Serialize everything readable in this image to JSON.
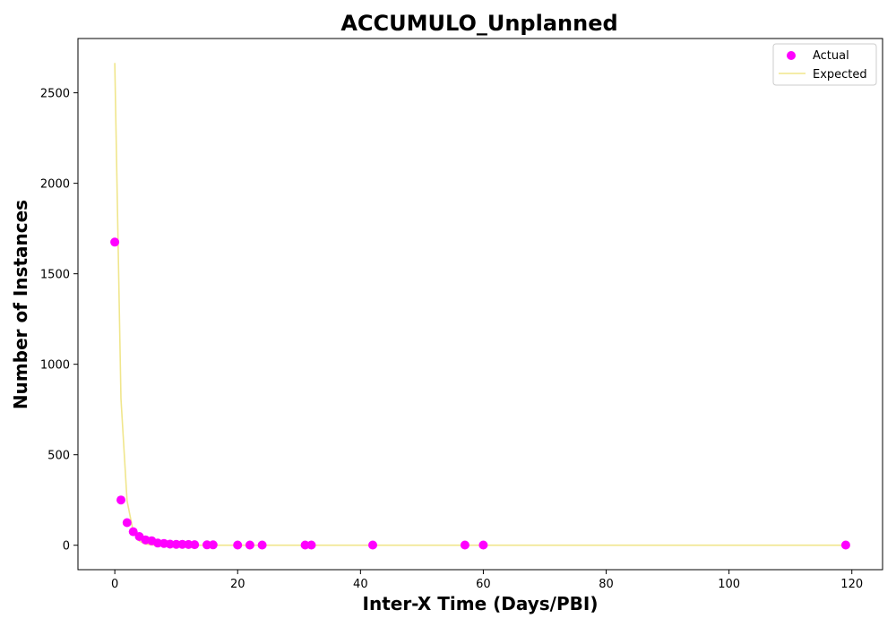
{
  "chart_data": {
    "type": "scatter",
    "title": "ACCUMULO_Unplanned",
    "xlabel": "Inter-X Time (Days/PBI)",
    "ylabel": "Number of Instances",
    "xlim": [
      -6,
      125
    ],
    "ylim": [
      -135,
      2800
    ],
    "xticks": [
      0,
      20,
      40,
      60,
      80,
      100,
      120
    ],
    "yticks": [
      0,
      500,
      1000,
      1500,
      2000,
      2500
    ],
    "grid": false,
    "legend_position": "upper right",
    "series": [
      {
        "name": "Actual",
        "kind": "scatter",
        "color": "#ff00ff",
        "points": [
          [
            0,
            1675
          ],
          [
            1,
            250
          ],
          [
            2,
            125
          ],
          [
            3,
            75
          ],
          [
            4,
            48
          ],
          [
            5,
            30
          ],
          [
            6,
            25
          ],
          [
            7,
            12
          ],
          [
            8,
            10
          ],
          [
            9,
            6
          ],
          [
            10,
            5
          ],
          [
            11,
            5
          ],
          [
            12,
            4
          ],
          [
            13,
            3
          ],
          [
            15,
            2
          ],
          [
            16,
            2
          ],
          [
            20,
            1
          ],
          [
            22,
            1
          ],
          [
            24,
            1
          ],
          [
            31,
            1
          ],
          [
            32,
            1
          ],
          [
            42,
            1
          ],
          [
            57,
            1
          ],
          [
            60,
            1
          ],
          [
            119,
            1
          ]
        ]
      },
      {
        "name": "Expected",
        "kind": "line",
        "color": "#f0e68c",
        "points": [
          [
            0,
            2665
          ],
          [
            1,
            810
          ],
          [
            2,
            246
          ],
          [
            3,
            75
          ],
          [
            4,
            23
          ],
          [
            5,
            7
          ],
          [
            6,
            2
          ],
          [
            7,
            0.6
          ],
          [
            8,
            0.2
          ],
          [
            10,
            0
          ],
          [
            20,
            0
          ],
          [
            40,
            0
          ],
          [
            60,
            0
          ],
          [
            80,
            0
          ],
          [
            100,
            0
          ],
          [
            119,
            0
          ]
        ]
      }
    ]
  }
}
